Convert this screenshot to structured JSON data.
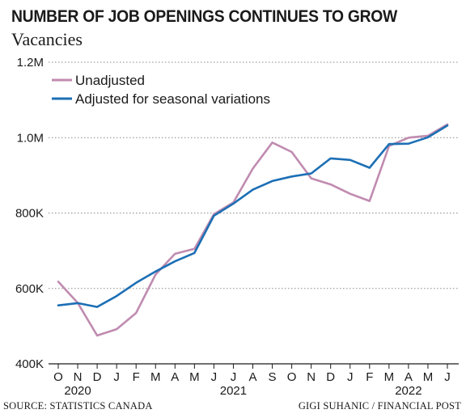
{
  "header": {
    "title": "NUMBER OF JOB OPENINGS CONTINUES TO GROW",
    "subtitle": "Vacancies"
  },
  "footer": {
    "source": "SOURCE: STATISTICS CANADA",
    "credit": "GIGI SUHANIC / FINANCIAL POST"
  },
  "chart_data": {
    "type": "line",
    "title": "NUMBER OF JOB OPENINGS CONTINUES TO GROW",
    "subtitle": "Vacancies",
    "categories": [
      "O",
      "N",
      "D",
      "J",
      "F",
      "M",
      "A",
      "M",
      "J",
      "J",
      "A",
      "S",
      "O",
      "N",
      "D",
      "J",
      "F",
      "M",
      "A",
      "M",
      "J"
    ],
    "years": [
      {
        "label": "2020",
        "center_index": 1
      },
      {
        "label": "2021",
        "center_index": 9
      },
      {
        "label": "2022",
        "center_index": 18
      }
    ],
    "y_ticks": [
      400000,
      600000,
      800000,
      1000000,
      1200000
    ],
    "y_tick_labels": [
      "400K",
      "600K",
      "800K",
      "1.0M",
      "1.2M"
    ],
    "ylim": [
      400000,
      1200000
    ],
    "grid": "horizontal dotted",
    "legend_position": "top-left",
    "series": [
      {
        "name": "Unadjusted",
        "color": "#c08bb0",
        "values": [
          618000,
          562000,
          475000,
          492000,
          535000,
          637000,
          692000,
          705000,
          797000,
          828000,
          918000,
          987000,
          962000,
          892000,
          876000,
          851000,
          832000,
          978000,
          1000000,
          1005000,
          1035000
        ]
      },
      {
        "name": "Adjusted for seasonal variations",
        "color": "#1c6fb5",
        "values": [
          555000,
          561000,
          551000,
          580000,
          615000,
          645000,
          672000,
          694000,
          793000,
          825000,
          862000,
          885000,
          897000,
          905000,
          945000,
          941000,
          920000,
          983000,
          984000,
          1001000,
          1032000
        ]
      }
    ]
  }
}
